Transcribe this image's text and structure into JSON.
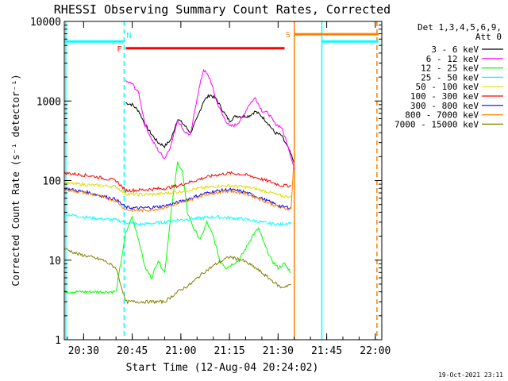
{
  "chart_data": {
    "type": "line",
    "title": "RHESSI Observing Summary Count Rates, Corrected",
    "xlabel": "Start Time (12-Aug-04 20:24:02)",
    "ylabel": "Corrected Count Rate (s⁻¹ detector⁻¹)",
    "y_scale": "log",
    "ylim": [
      1,
      10000
    ],
    "xlim": [
      "20:24:02",
      "22:02:00"
    ],
    "x_ticks": [
      "20:30",
      "20:45",
      "21:00",
      "21:15",
      "21:30",
      "21:45",
      "22:00"
    ],
    "y_ticks": [
      "1",
      "10",
      "100",
      "1000",
      "10000"
    ],
    "footer_timestamp": "19-Oct-2021 23:11",
    "legend": {
      "header_line1": "Det 1,3,4,5,6,9,",
      "header_line2": "Att 0",
      "placement": "right"
    },
    "flags": [
      {
        "label": "N",
        "color": "#00ffff",
        "time_start": "20:24:02",
        "time_end": "20:42:30",
        "level": 5600
      },
      {
        "label": "",
        "color": "#00ffff",
        "time_start": "21:43:30",
        "time_end": "22:01:00",
        "level": 5600
      },
      {
        "label": "F",
        "color": "#ff0000",
        "time_start": "20:43:00",
        "time_end": "21:32:00",
        "level": 4600
      },
      {
        "label": "S",
        "color": "#ff8000",
        "time_start": "21:35:00",
        "time_end": "22:01:00",
        "level": 6900
      }
    ],
    "vertical_markers": [
      {
        "time": "20:24:30",
        "color": "#00ffff",
        "style": "solid"
      },
      {
        "time": "20:42:30",
        "color": "#00ffff",
        "style": "dashed"
      },
      {
        "time": "21:35:00",
        "color": "#ff8000",
        "style": "solid"
      },
      {
        "time": "21:43:30",
        "color": "#00ffff",
        "style": "solid"
      },
      {
        "time": "22:00:30",
        "color": "#ff8000",
        "style": "dashed"
      }
    ],
    "series": [
      {
        "name": "3 - 6 keV",
        "color": "#000000",
        "points": [
          [
            "20:43:00",
            950
          ],
          [
            "20:45:00",
            900
          ],
          [
            "20:47:00",
            750
          ],
          [
            "20:49:00",
            500
          ],
          [
            "20:51:00",
            380
          ],
          [
            "20:53:00",
            300
          ],
          [
            "20:55:00",
            270
          ],
          [
            "20:57:00",
            330
          ],
          [
            "20:59:00",
            600
          ],
          [
            "21:01:00",
            500
          ],
          [
            "21:03:00",
            400
          ],
          [
            "21:05:00",
            600
          ],
          [
            "21:07:00",
            1000
          ],
          [
            "21:09:00",
            1200
          ],
          [
            "21:11:00",
            1050
          ],
          [
            "21:13:00",
            750
          ],
          [
            "21:15:00",
            560
          ],
          [
            "21:17:00",
            650
          ],
          [
            "21:19:00",
            640
          ],
          [
            "21:21:00",
            650
          ],
          [
            "21:23:00",
            740
          ],
          [
            "21:25:00",
            640
          ],
          [
            "21:27:00",
            520
          ],
          [
            "21:29:00",
            400
          ],
          [
            "21:31:00",
            370
          ],
          [
            "21:33:00",
            260
          ],
          [
            "21:35:00",
            170
          ]
        ]
      },
      {
        "name": "6 - 12 keV",
        "color": "#ff00ff",
        "points": [
          [
            "20:43:00",
            1750
          ],
          [
            "20:45:00",
            1650
          ],
          [
            "20:47:00",
            1250
          ],
          [
            "20:49:00",
            500
          ],
          [
            "20:51:00",
            330
          ],
          [
            "20:53:00",
            240
          ],
          [
            "20:55:00",
            190
          ],
          [
            "20:57:00",
            280
          ],
          [
            "20:59:00",
            580
          ],
          [
            "21:01:00",
            420
          ],
          [
            "21:03:00",
            370
          ],
          [
            "21:05:00",
            1100
          ],
          [
            "21:07:00",
            2500
          ],
          [
            "21:09:00",
            1900
          ],
          [
            "21:11:00",
            1000
          ],
          [
            "21:13:00",
            650
          ],
          [
            "21:15:00",
            480
          ],
          [
            "21:17:00",
            500
          ],
          [
            "21:19:00",
            620
          ],
          [
            "21:21:00",
            900
          ],
          [
            "21:23:00",
            1100
          ],
          [
            "21:25:00",
            760
          ],
          [
            "21:27:00",
            700
          ],
          [
            "21:29:00",
            520
          ],
          [
            "21:31:00",
            470
          ],
          [
            "21:33:00",
            280
          ],
          [
            "21:35:00",
            140
          ]
        ]
      },
      {
        "name": "12 - 25 keV",
        "color": "#00ff00",
        "points": [
          [
            "20:24:02",
            4
          ],
          [
            "20:32:00",
            4
          ],
          [
            "20:37:00",
            4
          ],
          [
            "20:40:00",
            4
          ],
          [
            "20:43:00",
            22
          ],
          [
            "20:45:00",
            35
          ],
          [
            "20:47:00",
            18
          ],
          [
            "20:49:00",
            8
          ],
          [
            "20:51:00",
            6
          ],
          [
            "20:53:00",
            10
          ],
          [
            "20:55:00",
            7
          ],
          [
            "20:57:00",
            40
          ],
          [
            "20:59:00",
            170
          ],
          [
            "21:00:30",
            130
          ],
          [
            "21:02:00",
            40
          ],
          [
            "21:04:00",
            25
          ],
          [
            "21:06:00",
            18
          ],
          [
            "21:08:00",
            30
          ],
          [
            "21:10:00",
            20
          ],
          [
            "21:12:00",
            10
          ],
          [
            "21:14:00",
            8
          ],
          [
            "21:16:00",
            9
          ],
          [
            "21:18:00",
            10
          ],
          [
            "21:20:00",
            14
          ],
          [
            "21:22:00",
            20
          ],
          [
            "21:24:00",
            25
          ],
          [
            "21:26:00",
            15
          ],
          [
            "21:28:00",
            10
          ],
          [
            "21:30:00",
            8
          ],
          [
            "21:32:00",
            9
          ],
          [
            "21:34:00",
            7
          ]
        ]
      },
      {
        "name": "25 - 50 keV",
        "color": "#00ffff",
        "points": [
          [
            "20:24:02",
            38
          ],
          [
            "20:32:00",
            34
          ],
          [
            "20:40:00",
            32
          ],
          [
            "20:43:00",
            30
          ],
          [
            "20:47:00",
            28
          ],
          [
            "20:51:00",
            29
          ],
          [
            "20:55:00",
            30
          ],
          [
            "20:59:00",
            32
          ],
          [
            "21:03:00",
            33
          ],
          [
            "21:07:00",
            34
          ],
          [
            "21:11:00",
            35
          ],
          [
            "21:15:00",
            34
          ],
          [
            "21:19:00",
            33
          ],
          [
            "21:23:00",
            31
          ],
          [
            "21:27:00",
            29
          ],
          [
            "21:31:00",
            28
          ],
          [
            "21:34:00",
            30
          ]
        ]
      },
      {
        "name": "50 - 100 keV",
        "color": "#dddd00",
        "points": [
          [
            "20:24:02",
            93
          ],
          [
            "20:32:00",
            88
          ],
          [
            "20:40:00",
            84
          ],
          [
            "20:43:00",
            68
          ],
          [
            "20:47:00",
            67
          ],
          [
            "20:51:00",
            67
          ],
          [
            "20:55:00",
            69
          ],
          [
            "20:59:00",
            72
          ],
          [
            "21:03:00",
            77
          ],
          [
            "21:07:00",
            81
          ],
          [
            "21:11:00",
            85
          ],
          [
            "21:15:00",
            86
          ],
          [
            "21:19:00",
            84
          ],
          [
            "21:23:00",
            79
          ],
          [
            "21:27:00",
            72
          ],
          [
            "21:31:00",
            64
          ],
          [
            "21:34:00",
            63
          ]
        ]
      },
      {
        "name": "100 - 300 keV",
        "color": "#ff0000",
        "points": [
          [
            "20:24:02",
            125
          ],
          [
            "20:32:00",
            115
          ],
          [
            "20:40:00",
            100
          ],
          [
            "20:43:00",
            75
          ],
          [
            "20:47:00",
            76
          ],
          [
            "20:51:00",
            78
          ],
          [
            "20:55:00",
            80
          ],
          [
            "20:59:00",
            86
          ],
          [
            "21:03:00",
            96
          ],
          [
            "21:07:00",
            108
          ],
          [
            "21:11:00",
            118
          ],
          [
            "21:15:00",
            124
          ],
          [
            "21:19:00",
            120
          ],
          [
            "21:23:00",
            110
          ],
          [
            "21:27:00",
            98
          ],
          [
            "21:31:00",
            87
          ],
          [
            "21:34:00",
            86
          ]
        ]
      },
      {
        "name": "300 - 800 keV",
        "color": "#0000ff",
        "points": [
          [
            "20:24:02",
            80
          ],
          [
            "20:32:00",
            70
          ],
          [
            "20:40:00",
            58
          ],
          [
            "20:43:00",
            46
          ],
          [
            "20:47:00",
            45
          ],
          [
            "20:51:00",
            46
          ],
          [
            "20:55:00",
            48
          ],
          [
            "20:59:00",
            53
          ],
          [
            "21:03:00",
            60
          ],
          [
            "21:07:00",
            68
          ],
          [
            "21:11:00",
            74
          ],
          [
            "21:15:00",
            77
          ],
          [
            "21:19:00",
            73
          ],
          [
            "21:23:00",
            64
          ],
          [
            "21:27:00",
            55
          ],
          [
            "21:31:00",
            47
          ],
          [
            "21:34:00",
            46
          ]
        ]
      },
      {
        "name": "800 - 7000 keV",
        "color": "#ff8000",
        "points": [
          [
            "20:24:02",
            78
          ],
          [
            "20:32:00",
            68
          ],
          [
            "20:40:00",
            56
          ],
          [
            "20:43:00",
            43
          ],
          [
            "20:47:00",
            42
          ],
          [
            "20:51:00",
            43
          ],
          [
            "20:55:00",
            46
          ],
          [
            "20:59:00",
            51
          ],
          [
            "21:03:00",
            58
          ],
          [
            "21:07:00",
            66
          ],
          [
            "21:11:00",
            71
          ],
          [
            "21:15:00",
            74
          ],
          [
            "21:19:00",
            70
          ],
          [
            "21:23:00",
            62
          ],
          [
            "21:27:00",
            53
          ],
          [
            "21:31:00",
            45
          ],
          [
            "21:34:00",
            44
          ],
          [
            "21:35:00",
            220
          ]
        ]
      },
      {
        "name": "7000 - 15000 keV",
        "color": "#808000",
        "points": [
          [
            "20:24:02",
            14
          ],
          [
            "20:28:00",
            12
          ],
          [
            "20:32:00",
            11
          ],
          [
            "20:36:00",
            10
          ],
          [
            "20:40:00",
            8
          ],
          [
            "20:43:00",
            3
          ],
          [
            "20:47:00",
            3
          ],
          [
            "20:51:00",
            3
          ],
          [
            "20:55:00",
            3
          ],
          [
            "20:59:00",
            4
          ],
          [
            "21:03:00",
            5
          ],
          [
            "21:07:00",
            7
          ],
          [
            "21:11:00",
            9
          ],
          [
            "21:15:00",
            11
          ],
          [
            "21:19:00",
            10
          ],
          [
            "21:23:00",
            8
          ],
          [
            "21:27:00",
            6
          ],
          [
            "21:31:00",
            4.5
          ],
          [
            "21:34:00",
            5
          ]
        ]
      }
    ]
  }
}
